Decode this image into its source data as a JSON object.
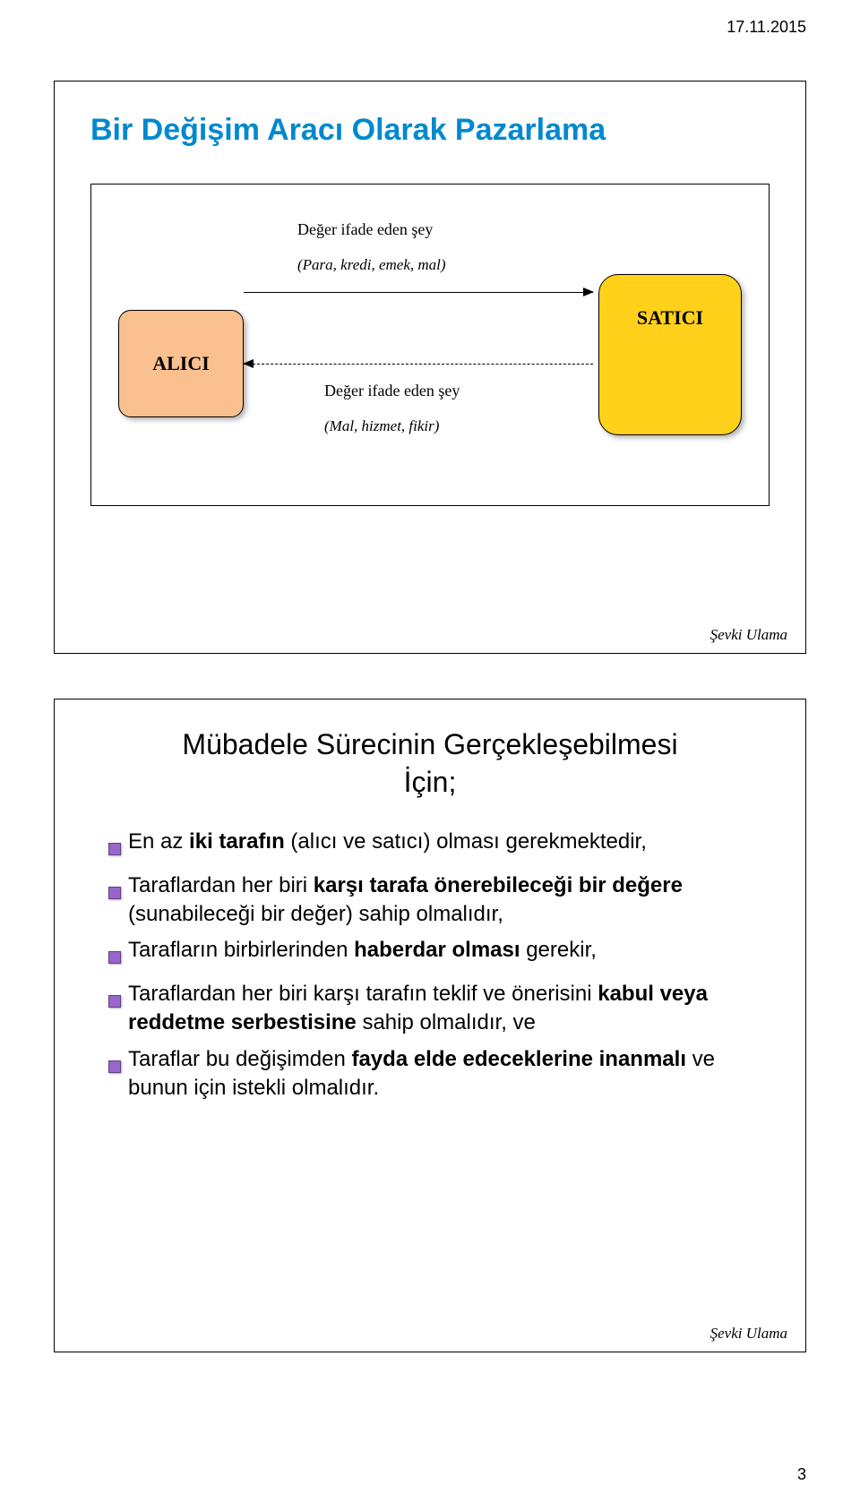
{
  "header": {
    "date": "17.11.2015"
  },
  "footer": {
    "page_number": "3",
    "credit": "Şevki Ulama"
  },
  "slide1": {
    "title": "Bir Değişim Aracı Olarak Pazarlama",
    "alici": "ALICI",
    "satici": "SATICI",
    "top_label": "Değer ifade eden şey",
    "top_sub": "(Para, kredi, emek, mal)",
    "bottom_label": "Değer ifade eden şey",
    "bottom_sub": "(Mal, hizmet, fikir)",
    "colors": {
      "title": "#0089cf",
      "alici_bg": "#fac090",
      "satici_bg": "#ffd11a",
      "bullet": "#9966cc"
    }
  },
  "slide2": {
    "title_line1": "Mübadele Sürecinin Gerçekleşebilmesi",
    "title_line2": "İçin;",
    "bullets": [
      {
        "pre": "En az ",
        "bold": "iki tarafın",
        "post": " (alıcı ve satıcı) olması gerekmektedir,"
      },
      {
        "pre": "Taraflardan her biri ",
        "bold": "karşı tarafa önerebileceği bir değere",
        "post": " (sunabileceği bir değer) sahip olmalıdır,"
      },
      {
        "pre": "Tarafların birbirlerinden ",
        "bold": "haberdar olması",
        "post": " gerekir,"
      },
      {
        "pre": "Taraflardan her biri karşı tarafın teklif ve önerisini ",
        "bold": "kabul veya reddetme serbestisine",
        "post": " sahip olmalıdır, ve"
      },
      {
        "pre": "Taraflar bu değişimden ",
        "bold": "fayda elde edeceklerine inanmalı",
        "post": " ve bunun için istekli olmalıdır."
      }
    ]
  }
}
